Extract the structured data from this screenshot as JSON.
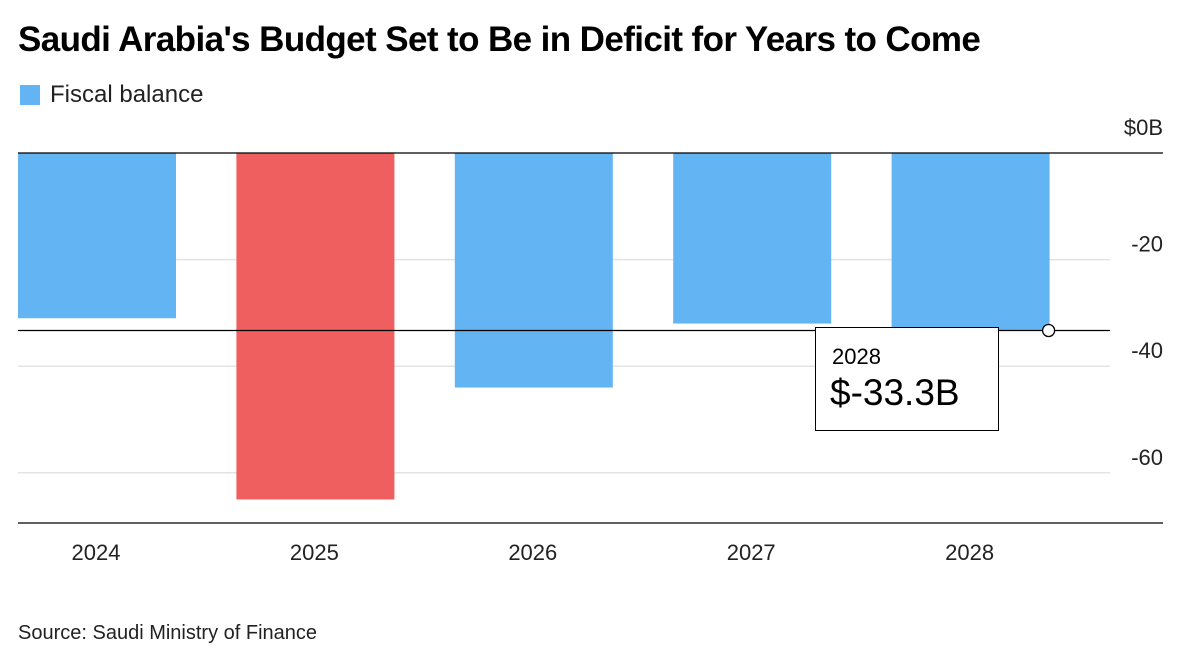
{
  "title": "Saudi Arabia's Budget Set to Be in Deficit for Years to Come",
  "legend": {
    "label": "Fiscal balance",
    "color": "#63b4f2"
  },
  "source": "Source: Saudi Ministry of Finance",
  "colors": {
    "positive_highlight": "#ef5f5f",
    "bar": "#63b4f2",
    "grid": "#e3e3e3",
    "axis": "#000000"
  },
  "chart_data": {
    "type": "bar",
    "title": "Saudi Arabia's Budget Set to Be in Deficit for Years to Come",
    "xlabel": "",
    "ylabel": "",
    "categories": [
      "2024",
      "2025",
      "2026",
      "2027",
      "2028"
    ],
    "series": [
      {
        "name": "Fiscal balance",
        "values": [
          -31.0,
          -65.0,
          -44.0,
          -32.0,
          -33.3
        ]
      }
    ],
    "highlight_index": 1,
    "ylim": [
      -70,
      0
    ],
    "y_ticks": [
      0,
      -20,
      -40,
      -60
    ],
    "y_tick_labels": [
      "$0B",
      "-20",
      "-40",
      "-60"
    ],
    "reference_value": -33.3,
    "annotation": {
      "category": "2028",
      "value_label": "$-33.3B"
    }
  }
}
